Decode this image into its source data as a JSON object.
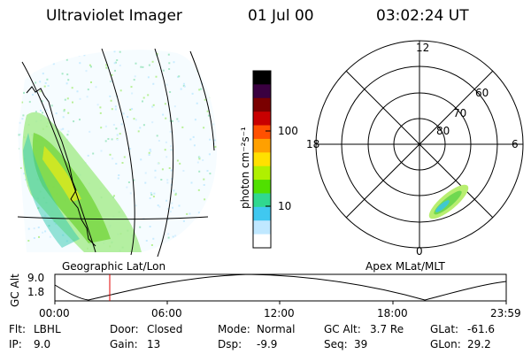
{
  "header": {
    "title": "Ultraviolet Imager",
    "date": "01 Jul 00",
    "time": "03:02:24 UT"
  },
  "left_panel": {
    "caption": "Geographic Lat/Lon"
  },
  "colorbar": {
    "unit_label": "photon cm⁻²s⁻¹",
    "tick_labels": [
      "100",
      "10"
    ],
    "colors": [
      "#000000",
      "#3a0040",
      "#7a0000",
      "#c80000",
      "#ff5000",
      "#ffa000",
      "#ffe000",
      "#b0f000",
      "#50e000",
      "#30d890",
      "#40c8f0",
      "#c0e8ff",
      "#ffffff"
    ]
  },
  "polar_plot": {
    "caption": "Apex MLat/MLT",
    "mlt_labels": {
      "top": "12",
      "left": "18",
      "right": "6",
      "bottom": "0"
    },
    "mlat_labels": [
      "60",
      "70",
      "80"
    ]
  },
  "altitude_plot": {
    "ylabel": "GC Alt",
    "y_ticks": [
      "9.0",
      "1.8"
    ],
    "x_ticks": [
      "00:00",
      "06:00",
      "12:00",
      "18:00",
      "23:59"
    ]
  },
  "info": {
    "flt_label": "Flt:",
    "flt": "LBHL",
    "ip_label": "IP:",
    "ip": "9.0",
    "door_label": "Door:",
    "door": "Closed",
    "gain_label": "Gain:",
    "gain": "13",
    "mode_label": "Mode:",
    "mode": "Normal",
    "dsp_label": "Dsp:",
    "dsp": "-9.9",
    "gcalt_label": "GC Alt:",
    "gcalt": "3.7 Re",
    "seq_label": "Seq:",
    "seq": "39",
    "glat_label": "GLat:",
    "glat": "-61.6",
    "glon_label": "GLon:",
    "glon": "29.2"
  }
}
